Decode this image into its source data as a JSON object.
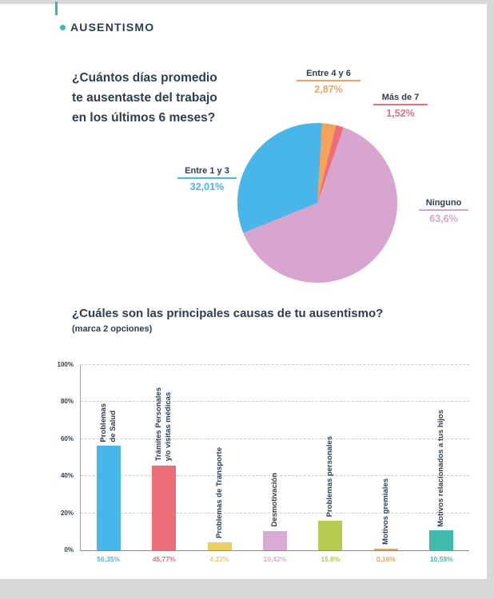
{
  "page": {
    "accent_color": "#3bb7ac",
    "text_color": "#2e3e4e"
  },
  "header": {
    "title": "AUSENTISMO"
  },
  "pie_section": {
    "question_lines": [
      "¿Cuántos días promedio",
      "te ausentaste del trabajo",
      "en los últimos 6 meses?"
    ]
  },
  "bar_section": {
    "title": "¿Cuáles son las principales causas de tu ausentismo?",
    "subtitle": "(marca 2 opciones)"
  },
  "chart_data": [
    {
      "type": "pie",
      "title": "¿Cuántos días promedio te ausentaste del trabajo en los últimos 6 meses?",
      "rotation_deg": 248,
      "slices": [
        {
          "label": "Entre 1 y 3",
          "value": 32.01,
          "display": "32,01%",
          "color": "#49b6e9"
        },
        {
          "label": "Entre 4 y 6",
          "value": 2.87,
          "display": "2,87%",
          "color": "#f5a35b"
        },
        {
          "label": "Más de 7",
          "value": 1.52,
          "display": "1,52%",
          "color": "#ed6e79"
        },
        {
          "label": "Ninguno",
          "value": 63.6,
          "display": "63,6%",
          "color": "#d8a5ce"
        }
      ]
    },
    {
      "type": "bar",
      "title": "¿Cuáles son las principales causas de tu ausentismo?",
      "subtitle": "(marca 2 opciones)",
      "ylim": [
        0,
        100
      ],
      "yticks": [
        "0%",
        "20%",
        "40%",
        "60%",
        "80%",
        "100%"
      ],
      "grid": "dashed horizontal",
      "categories": [
        "Problemas\nde Salud",
        "Trámites Personales\ny/o visitas médicas",
        "Problemas de Transporte",
        "Desmotivación",
        "Problemas personales",
        "Motivos gremiales",
        "Motivos relacionados a tus hijos"
      ],
      "values": [
        56.35,
        45.77,
        4.23,
        10.42,
        15.8,
        0.16,
        10.59
      ],
      "value_labels": [
        "56,35%",
        "45,77%",
        "4,23%",
        "10,42%",
        "15,8%",
        "0,16%",
        "10,59%"
      ],
      "colors": [
        "#49b6e9",
        "#ed6e79",
        "#ecd05e",
        "#dcabd3",
        "#b7c94e",
        "#f5a35b",
        "#3fbcab"
      ]
    }
  ]
}
